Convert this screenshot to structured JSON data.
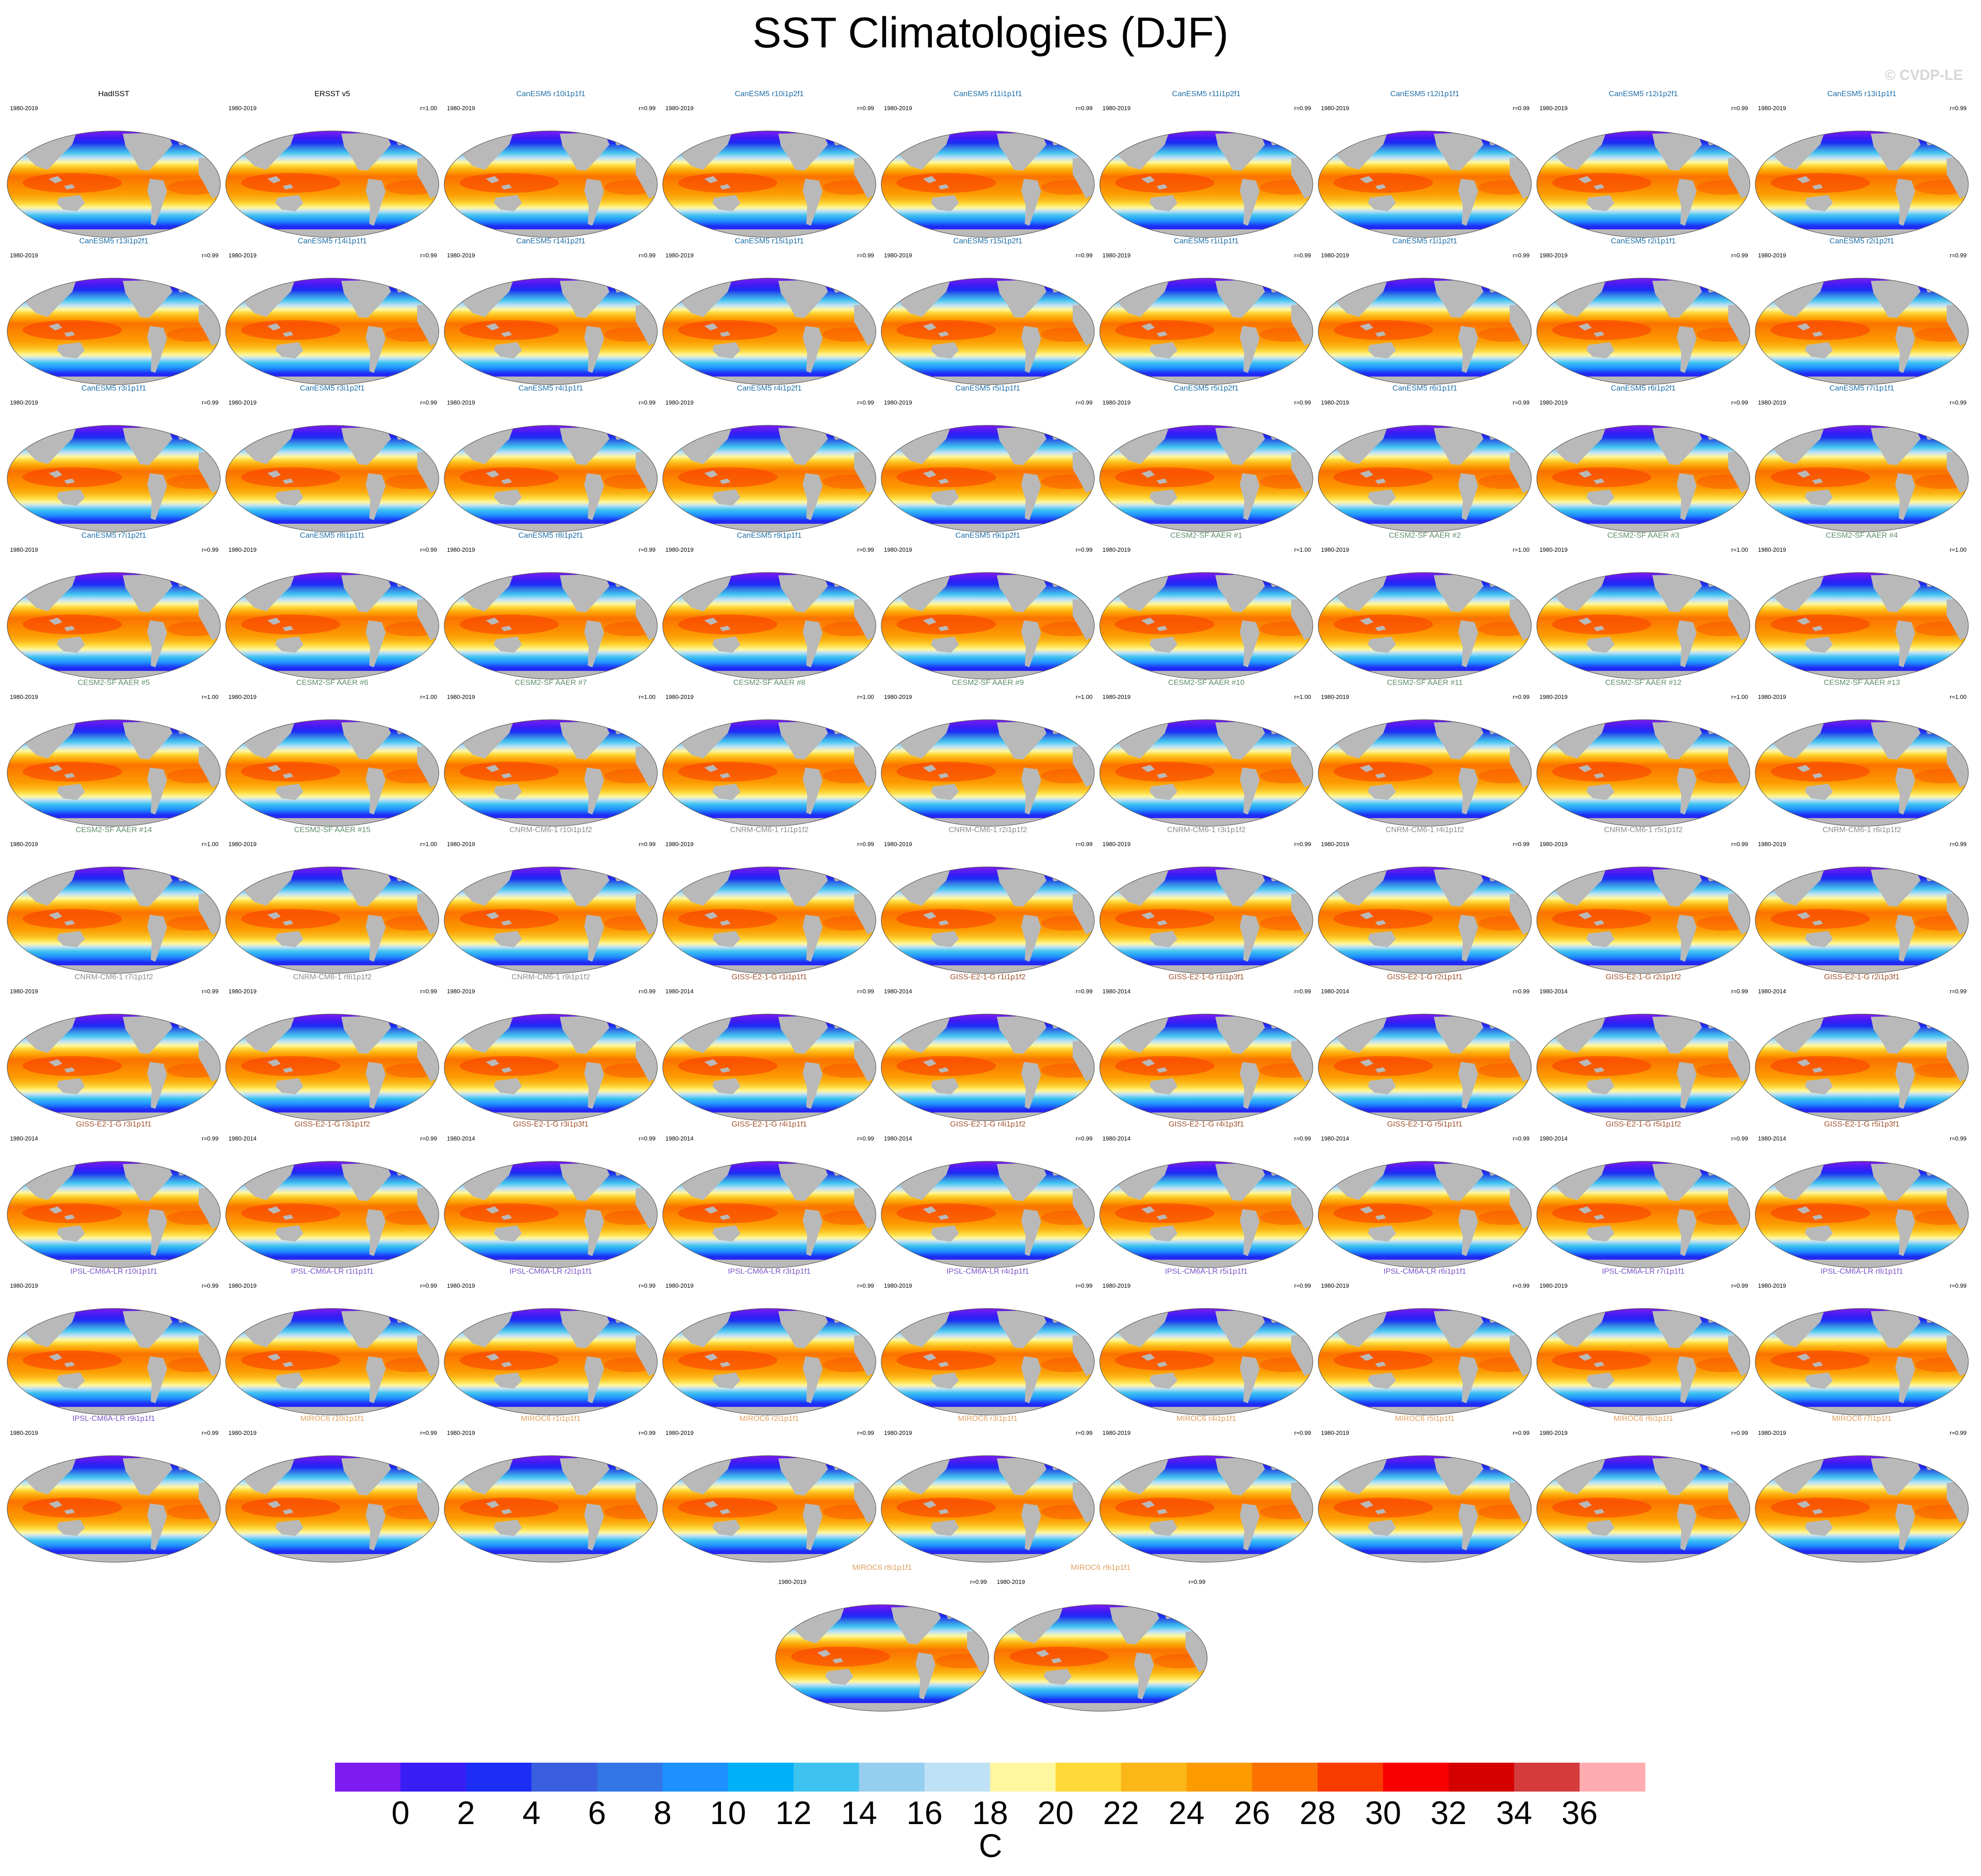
{
  "chart_data": {
    "type": "map-panels",
    "title": "SST Climatologies (DJF)",
    "watermark": "© CVDP-LE",
    "projection": "Robinson (global)",
    "season": "DJF",
    "colorbar": {
      "label": "C",
      "ticks": [
        "0",
        "2",
        "4",
        "6",
        "8",
        "10",
        "12",
        "14",
        "16",
        "18",
        "20",
        "22",
        "24",
        "26",
        "28",
        "30",
        "32",
        "34",
        "36"
      ],
      "colors": [
        "#7c1cf0",
        "#3a1cf5",
        "#1c2df5",
        "#3a5ee0",
        "#3276e6",
        "#1e90ff",
        "#00b0f8",
        "#3ec3f0",
        "#96cef0",
        "#bfe1f5",
        "#fff7a0",
        "#ffd93a",
        "#fbb618",
        "#fc9b00",
        "#fb7200",
        "#fa3b00",
        "#f80000",
        "#d40000",
        "#d43c3c",
        "#ffacb1"
      ]
    },
    "panels": [
      {
        "title": "HadISST",
        "years": "1980-2019",
        "r": "",
        "color": "#000000"
      },
      {
        "title": "ERSST v5",
        "years": "1980-2019",
        "r": "r=1.00",
        "color": "#000000"
      },
      {
        "title": "CanESM5 r10i1p1f1",
        "years": "1980-2019",
        "r": "r=0.99",
        "color": "#1f6fa8"
      },
      {
        "title": "CanESM5 r10i1p2f1",
        "years": "1980-2019",
        "r": "r=0.99",
        "color": "#1f6fa8"
      },
      {
        "title": "CanESM5 r11i1p1f1",
        "years": "1980-2019",
        "r": "r=0.99",
        "color": "#1f6fa8"
      },
      {
        "title": "CanESM5 r11i1p2f1",
        "years": "1980-2019",
        "r": "r=0.99",
        "color": "#1f6fa8"
      },
      {
        "title": "CanESM5 r12i1p1f1",
        "years": "1980-2019",
        "r": "r=0.99",
        "color": "#1f6fa8"
      },
      {
        "title": "CanESM5 r12i1p2f1",
        "years": "1980-2019",
        "r": "r=0.99",
        "color": "#1f6fa8"
      },
      {
        "title": "CanESM5 r13i1p1f1",
        "years": "1980-2019",
        "r": "r=0.99",
        "color": "#1f6fa8"
      },
      {
        "title": "CanESM5 r13i1p2f1",
        "years": "1980-2019",
        "r": "r=0.99",
        "color": "#1f6fa8"
      },
      {
        "title": "CanESM5 r14i1p1f1",
        "years": "1980-2019",
        "r": "r=0.99",
        "color": "#1f6fa8"
      },
      {
        "title": "CanESM5 r14i1p2f1",
        "years": "1980-2019",
        "r": "r=0.99",
        "color": "#1f6fa8"
      },
      {
        "title": "CanESM5 r15i1p1f1",
        "years": "1980-2019",
        "r": "r=0.99",
        "color": "#1f6fa8"
      },
      {
        "title": "CanESM5 r15i1p2f1",
        "years": "1980-2019",
        "r": "r=0.99",
        "color": "#1f6fa8"
      },
      {
        "title": "CanESM5 r1i1p1f1",
        "years": "1980-2019",
        "r": "r=0.99",
        "color": "#1f6fa8"
      },
      {
        "title": "CanESM5 r1i1p2f1",
        "years": "1980-2019",
        "r": "r=0.99",
        "color": "#1f6fa8"
      },
      {
        "title": "CanESM5 r2i1p1f1",
        "years": "1980-2019",
        "r": "r=0.99",
        "color": "#1f6fa8"
      },
      {
        "title": "CanESM5 r2i1p2f1",
        "years": "1980-2019",
        "r": "r=0.99",
        "color": "#1f6fa8"
      },
      {
        "title": "CanESM5 r3i1p1f1",
        "years": "1980-2019",
        "r": "r=0.99",
        "color": "#1f6fa8"
      },
      {
        "title": "CanESM5 r3i1p2f1",
        "years": "1980-2019",
        "r": "r=0.99",
        "color": "#1f6fa8"
      },
      {
        "title": "CanESM5 r4i1p1f1",
        "years": "1980-2019",
        "r": "r=0.99",
        "color": "#1f6fa8"
      },
      {
        "title": "CanESM5 r4i1p2f1",
        "years": "1980-2019",
        "r": "r=0.99",
        "color": "#1f6fa8"
      },
      {
        "title": "CanESM5 r5i1p1f1",
        "years": "1980-2019",
        "r": "r=0.99",
        "color": "#1f6fa8"
      },
      {
        "title": "CanESM5 r5i1p2f1",
        "years": "1980-2019",
        "r": "r=0.99",
        "color": "#1f6fa8"
      },
      {
        "title": "CanESM5 r6i1p1f1",
        "years": "1980-2019",
        "r": "r=0.99",
        "color": "#1f6fa8"
      },
      {
        "title": "CanESM5 r6i1p2f1",
        "years": "1980-2019",
        "r": "r=0.99",
        "color": "#1f6fa8"
      },
      {
        "title": "CanESM5 r7i1p1f1",
        "years": "1980-2019",
        "r": "r=0.99",
        "color": "#1f6fa8"
      },
      {
        "title": "CanESM5 r7i1p2f1",
        "years": "1980-2019",
        "r": "r=0.99",
        "color": "#1f6fa8"
      },
      {
        "title": "CanESM5 r8i1p1f1",
        "years": "1980-2019",
        "r": "r=0.99",
        "color": "#1f6fa8"
      },
      {
        "title": "CanESM5 r8i1p2f1",
        "years": "1980-2019",
        "r": "r=0.99",
        "color": "#1f6fa8"
      },
      {
        "title": "CanESM5 r9i1p1f1",
        "years": "1980-2019",
        "r": "r=0.99",
        "color": "#1f6fa8"
      },
      {
        "title": "CanESM5 r9i1p2f1",
        "years": "1980-2019",
        "r": "r=0.99",
        "color": "#1f6fa8"
      },
      {
        "title": "CESM2-SF AAER #1",
        "years": "1980-2019",
        "r": "r=1.00",
        "color": "#5f8f6a"
      },
      {
        "title": "CESM2-SF AAER #2",
        "years": "1980-2019",
        "r": "r=1.00",
        "color": "#5f8f6a"
      },
      {
        "title": "CESM2-SF AAER #3",
        "years": "1980-2019",
        "r": "r=1.00",
        "color": "#5f8f6a"
      },
      {
        "title": "CESM2-SF AAER #4",
        "years": "1980-2019",
        "r": "r=1.00",
        "color": "#5f8f6a"
      },
      {
        "title": "CESM2-SF AAER #5",
        "years": "1980-2019",
        "r": "r=1.00",
        "color": "#5f8f6a"
      },
      {
        "title": "CESM2-SF AAER #6",
        "years": "1980-2019",
        "r": "r=1.00",
        "color": "#5f8f6a"
      },
      {
        "title": "CESM2-SF AAER #7",
        "years": "1980-2019",
        "r": "r=1.00",
        "color": "#5f8f6a"
      },
      {
        "title": "CESM2-SF AAER #8",
        "years": "1980-2019",
        "r": "r=1.00",
        "color": "#5f8f6a"
      },
      {
        "title": "CESM2-SF AAER #9",
        "years": "1980-2019",
        "r": "r=1.00",
        "color": "#5f8f6a"
      },
      {
        "title": "CESM2-SF AAER #10",
        "years": "1980-2019",
        "r": "r=1.00",
        "color": "#5f8f6a"
      },
      {
        "title": "CESM2-SF AAER #11",
        "years": "1980-2019",
        "r": "r=0.99",
        "color": "#5f8f6a"
      },
      {
        "title": "CESM2-SF AAER #12",
        "years": "1980-2019",
        "r": "r=1.00",
        "color": "#5f8f6a"
      },
      {
        "title": "CESM2-SF AAER #13",
        "years": "1980-2019",
        "r": "r=1.00",
        "color": "#5f8f6a"
      },
      {
        "title": "CESM2-SF AAER #14",
        "years": "1980-2019",
        "r": "r=1.00",
        "color": "#5f8f6a"
      },
      {
        "title": "CESM2-SF AAER #15",
        "years": "1980-2019",
        "r": "r=1.00",
        "color": "#5f8f6a"
      },
      {
        "title": "CNRM-CM6-1 r10i1p1f2",
        "years": "1980-2019",
        "r": "r=0.99",
        "color": "#8c8c8c"
      },
      {
        "title": "CNRM-CM6-1 r1i1p1f2",
        "years": "1980-2019",
        "r": "r=0.99",
        "color": "#8c8c8c"
      },
      {
        "title": "CNRM-CM6-1 r2i1p1f2",
        "years": "1980-2019",
        "r": "r=0.99",
        "color": "#8c8c8c"
      },
      {
        "title": "CNRM-CM6-1 r3i1p1f2",
        "years": "1980-2019",
        "r": "r=0.99",
        "color": "#8c8c8c"
      },
      {
        "title": "CNRM-CM6-1 r4i1p1f2",
        "years": "1980-2019",
        "r": "r=0.99",
        "color": "#8c8c8c"
      },
      {
        "title": "CNRM-CM6-1 r5i1p1f2",
        "years": "1980-2019",
        "r": "r=0.99",
        "color": "#8c8c8c"
      },
      {
        "title": "CNRM-CM6-1 r6i1p1f2",
        "years": "1980-2019",
        "r": "r=0.99",
        "color": "#8c8c8c"
      },
      {
        "title": "CNRM-CM6-1 r7i1p1f2",
        "years": "1980-2019",
        "r": "r=0.99",
        "color": "#8c8c8c"
      },
      {
        "title": "CNRM-CM6-1 r8i1p1f2",
        "years": "1980-2019",
        "r": "r=0.99",
        "color": "#8c8c8c"
      },
      {
        "title": "CNRM-CM6-1 r9i1p1f2",
        "years": "1980-2019",
        "r": "r=0.99",
        "color": "#8c8c8c"
      },
      {
        "title": "GISS-E2-1-G r1i1p1f1",
        "years": "1980-2014",
        "r": "r=0.99",
        "color": "#a0522d"
      },
      {
        "title": "GISS-E2-1-G r1i1p1f2",
        "years": "1980-2014",
        "r": "r=0.99",
        "color": "#a0522d"
      },
      {
        "title": "GISS-E2-1-G r1i1p3f1",
        "years": "1980-2014",
        "r": "r=0.99",
        "color": "#a0522d"
      },
      {
        "title": "GISS-E2-1-G r2i1p1f1",
        "years": "1980-2014",
        "r": "r=0.99",
        "color": "#a0522d"
      },
      {
        "title": "GISS-E2-1-G r2i1p1f2",
        "years": "1980-2014",
        "r": "r=0.99",
        "color": "#a0522d"
      },
      {
        "title": "GISS-E2-1-G r2i1p3f1",
        "years": "1980-2014",
        "r": "r=0.99",
        "color": "#a0522d"
      },
      {
        "title": "GISS-E2-1-G r3i1p1f1",
        "years": "1980-2014",
        "r": "r=0.99",
        "color": "#a0522d"
      },
      {
        "title": "GISS-E2-1-G r3i1p1f2",
        "years": "1980-2014",
        "r": "r=0.99",
        "color": "#a0522d"
      },
      {
        "title": "GISS-E2-1-G r3i1p3f1",
        "years": "1980-2014",
        "r": "r=0.99",
        "color": "#a0522d"
      },
      {
        "title": "GISS-E2-1-G r4i1p1f1",
        "years": "1980-2014",
        "r": "r=0.99",
        "color": "#a0522d"
      },
      {
        "title": "GISS-E2-1-G r4i1p1f2",
        "years": "1980-2014",
        "r": "r=0.99",
        "color": "#a0522d"
      },
      {
        "title": "GISS-E2-1-G r4i1p3f1",
        "years": "1980-2014",
        "r": "r=0.99",
        "color": "#a0522d"
      },
      {
        "title": "GISS-E2-1-G r5i1p1f1",
        "years": "1980-2014",
        "r": "r=0.99",
        "color": "#a0522d"
      },
      {
        "title": "GISS-E2-1-G r5i1p1f2",
        "years": "1980-2014",
        "r": "r=0.99",
        "color": "#a0522d"
      },
      {
        "title": "GISS-E2-1-G r5i1p3f1",
        "years": "1980-2014",
        "r": "r=0.99",
        "color": "#a0522d"
      },
      {
        "title": "IPSL-CM6A-LR r10i1p1f1",
        "years": "1980-2019",
        "r": "r=0.99",
        "color": "#7a55c9"
      },
      {
        "title": "IPSL-CM6A-LR r1i1p1f1",
        "years": "1980-2019",
        "r": "r=0.99",
        "color": "#7a55c9"
      },
      {
        "title": "IPSL-CM6A-LR r2i1p1f1",
        "years": "1980-2019",
        "r": "r=0.99",
        "color": "#7a55c9"
      },
      {
        "title": "IPSL-CM6A-LR r3i1p1f1",
        "years": "1980-2019",
        "r": "r=0.99",
        "color": "#7a55c9"
      },
      {
        "title": "IPSL-CM6A-LR r4i1p1f1",
        "years": "1980-2019",
        "r": "r=0.99",
        "color": "#7a55c9"
      },
      {
        "title": "IPSL-CM6A-LR r5i1p1f1",
        "years": "1980-2019",
        "r": "r=0.99",
        "color": "#7a55c9"
      },
      {
        "title": "IPSL-CM6A-LR r6i1p1f1",
        "years": "1980-2019",
        "r": "r=0.99",
        "color": "#7a55c9"
      },
      {
        "title": "IPSL-CM6A-LR r7i1p1f1",
        "years": "1980-2019",
        "r": "r=0.99",
        "color": "#7a55c9"
      },
      {
        "title": "IPSL-CM6A-LR r8i1p1f1",
        "years": "1980-2019",
        "r": "r=0.99",
        "color": "#7a55c9"
      },
      {
        "title": "IPSL-CM6A-LR r9i1p1f1",
        "years": "1980-2019",
        "r": "r=0.99",
        "color": "#7a55c9"
      },
      {
        "title": "MIROC6 r10i1p1f1",
        "years": "1980-2019",
        "r": "r=0.99",
        "color": "#e0a060"
      },
      {
        "title": "MIROC6 r1i1p1f1",
        "years": "1980-2019",
        "r": "r=0.99",
        "color": "#e0a060"
      },
      {
        "title": "MIROC6 r2i1p1f1",
        "years": "1980-2019",
        "r": "r=0.99",
        "color": "#e0a060"
      },
      {
        "title": "MIROC6 r3i1p1f1",
        "years": "1980-2019",
        "r": "r=0.99",
        "color": "#e0a060"
      },
      {
        "title": "MIROC6 r4i1p1f1",
        "years": "1980-2019",
        "r": "r=0.99",
        "color": "#e0a060"
      },
      {
        "title": "MIROC6 r5i1p1f1",
        "years": "1980-2019",
        "r": "r=0.99",
        "color": "#e0a060"
      },
      {
        "title": "MIROC6 r6i1p1f1",
        "years": "1980-2019",
        "r": "r=0.99",
        "color": "#e0a060"
      },
      {
        "title": "MIROC6 r7i1p1f1",
        "years": "1980-2019",
        "r": "r=0.99",
        "color": "#e0a060"
      },
      {
        "title": "MIROC6 r8i1p1f1",
        "years": "1980-2019",
        "r": "r=0.99",
        "color": "#e0a060"
      },
      {
        "title": "MIROC6 r9i1p1f1",
        "years": "1980-2019",
        "r": "r=0.99",
        "color": "#e0a060"
      }
    ]
  }
}
